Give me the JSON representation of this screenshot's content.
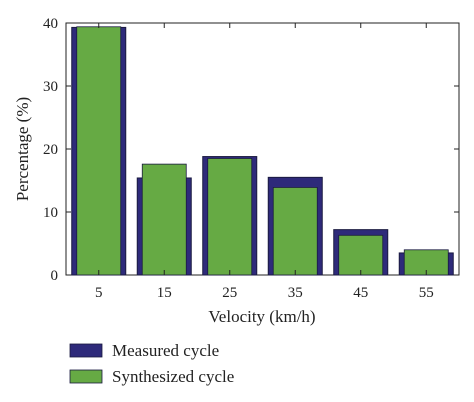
{
  "chart_data": {
    "type": "bar",
    "categories": [
      "5",
      "15",
      "25",
      "35",
      "45",
      "55"
    ],
    "series": [
      {
        "name": "Measured cycle",
        "values": [
          39.3,
          15.4,
          18.8,
          15.5,
          7.2,
          3.5
        ],
        "color": "#2e2a7a"
      },
      {
        "name": "Synthesized cycle",
        "values": [
          39.4,
          17.6,
          18.5,
          13.9,
          6.3,
          4.0
        ],
        "color": "#66aa44"
      }
    ],
    "xlabel": "Velocity (km/h)",
    "ylabel": "Percentage (%)",
    "ylim": [
      0,
      40
    ],
    "yticks": [
      "0",
      "10",
      "20",
      "30",
      "40"
    ],
    "grid": false,
    "legend_position": "below"
  }
}
